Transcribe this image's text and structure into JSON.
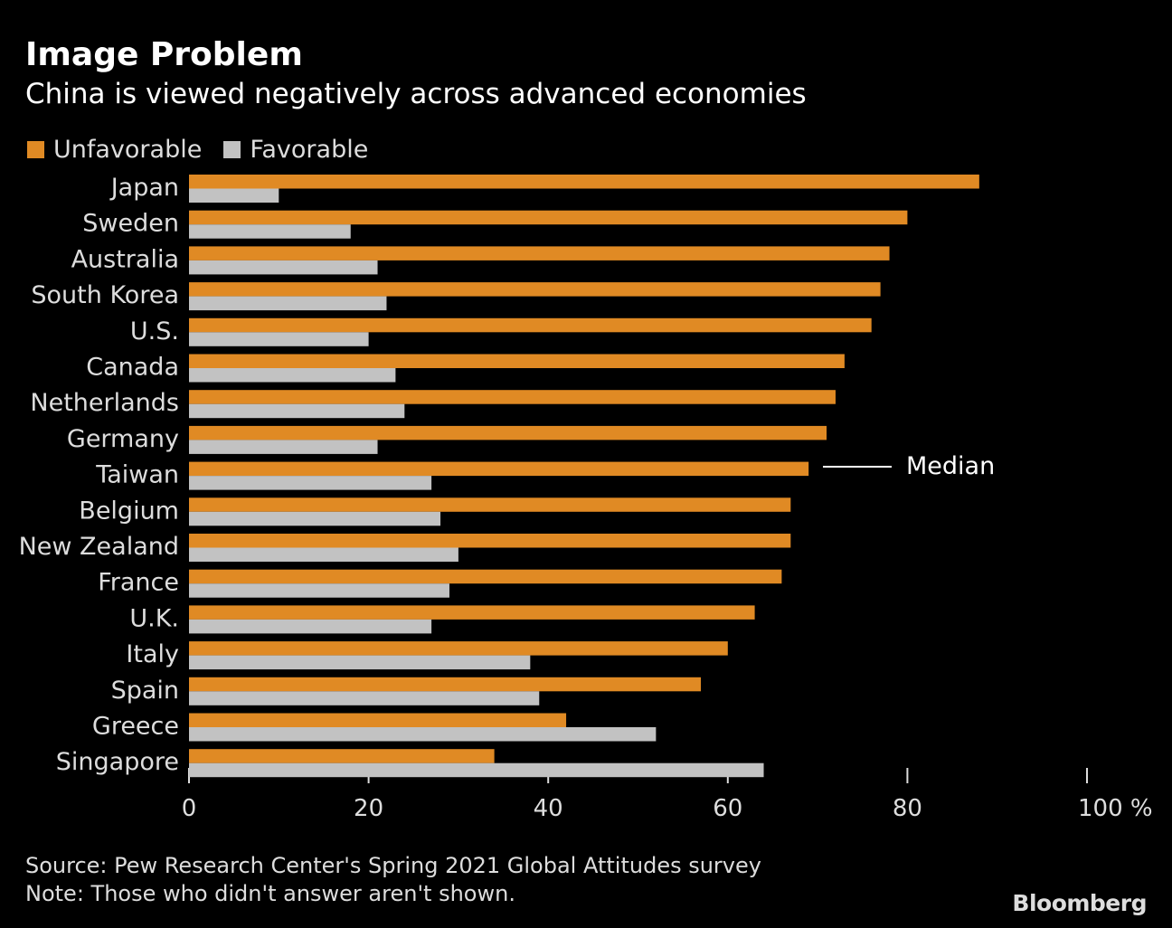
{
  "colors": {
    "unfavorable": "#e08a24",
    "favorable": "#c2c2c2",
    "background": "#000000"
  },
  "chart_data": {
    "type": "bar",
    "orientation": "horizontal",
    "title": "Image Problem",
    "subtitle": "China is viewed negatively across advanced economies",
    "categories": [
      "Japan",
      "Sweden",
      "Australia",
      "South Korea",
      "U.S.",
      "Canada",
      "Netherlands",
      "Germany",
      "Taiwan",
      "Belgium",
      "New Zealand",
      "France",
      "U.K.",
      "Italy",
      "Spain",
      "Greece",
      "Singapore"
    ],
    "series": [
      {
        "name": "Unfavorable",
        "values": [
          88,
          80,
          78,
          77,
          76,
          73,
          72,
          71,
          69,
          67,
          67,
          66,
          63,
          60,
          57,
          42,
          34
        ]
      },
      {
        "name": "Favorable",
        "values": [
          10,
          18,
          21,
          22,
          20,
          23,
          24,
          21,
          27,
          28,
          30,
          29,
          27,
          38,
          39,
          52,
          64
        ]
      }
    ],
    "xlim": [
      0,
      100
    ],
    "xticks": [
      "0",
      "20",
      "40",
      "60",
      "80",
      "100 %"
    ],
    "xtick_values": [
      0,
      20,
      40,
      60,
      80,
      100
    ],
    "legend_position": "top-left",
    "annotation": {
      "label": "Median",
      "value": 69
    },
    "grid": false
  },
  "footer": {
    "source": "Source: Pew Research Center's Spring 2021 Global Attitudes survey",
    "note": "Note: Those who didn't answer aren't shown.",
    "logo": "Bloomberg"
  }
}
